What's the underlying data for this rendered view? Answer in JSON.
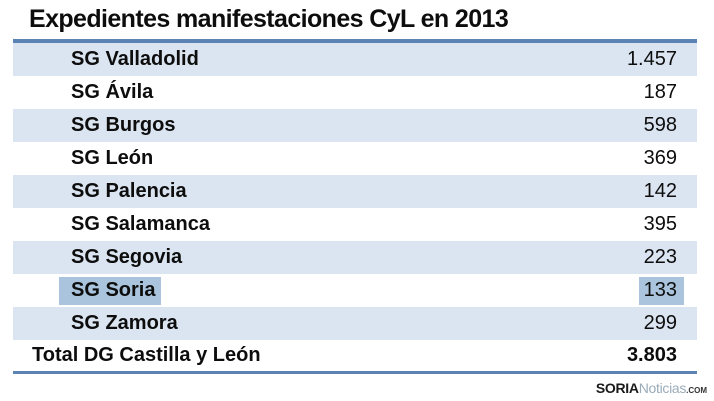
{
  "title": "Expedientes manifestaciones CyL en 2013",
  "table": {
    "rows": [
      {
        "label": "SG Valladolid",
        "value": "1.457",
        "highlighted": false
      },
      {
        "label": "SG Ávila",
        "value": "187",
        "highlighted": false
      },
      {
        "label": "SG Burgos",
        "value": "598",
        "highlighted": false
      },
      {
        "label": "SG León",
        "value": "369",
        "highlighted": false
      },
      {
        "label": "SG Palencia",
        "value": "142",
        "highlighted": false
      },
      {
        "label": "SG Salamanca",
        "value": "395",
        "highlighted": false
      },
      {
        "label": "SG Segovia",
        "value": "223",
        "highlighted": false
      },
      {
        "label": "SG Soria",
        "value": "133",
        "highlighted": true
      },
      {
        "label": "SG Zamora",
        "value": "299",
        "highlighted": false
      }
    ],
    "total": {
      "label": "Total DG Castilla y León",
      "value": "3.803"
    }
  },
  "chart_data": {
    "type": "table",
    "title": "Expedientes manifestaciones CyL en 2013",
    "categories": [
      "SG Valladolid",
      "SG Ávila",
      "SG Burgos",
      "SG León",
      "SG Palencia",
      "SG Salamanca",
      "SG Segovia",
      "SG Soria",
      "SG Zamora"
    ],
    "values": [
      1457,
      187,
      598,
      369,
      142,
      395,
      223,
      133,
      299
    ],
    "total_label": "Total DG Castilla y León",
    "total_value": 3803,
    "highlighted_row": "SG Soria",
    "layout": {
      "banded_rows": true,
      "value_alignment": "right"
    }
  },
  "colors": {
    "band_blue": "#dbe5f1",
    "border_blue": "#5b84b5",
    "highlight_blue": "#a9c4dc",
    "text": "#0d0d0d",
    "watermark_light": "#9aacba"
  },
  "watermark": {
    "brand_bold": "SORIA",
    "brand_light": "Noticias",
    "tld": ".COM"
  }
}
